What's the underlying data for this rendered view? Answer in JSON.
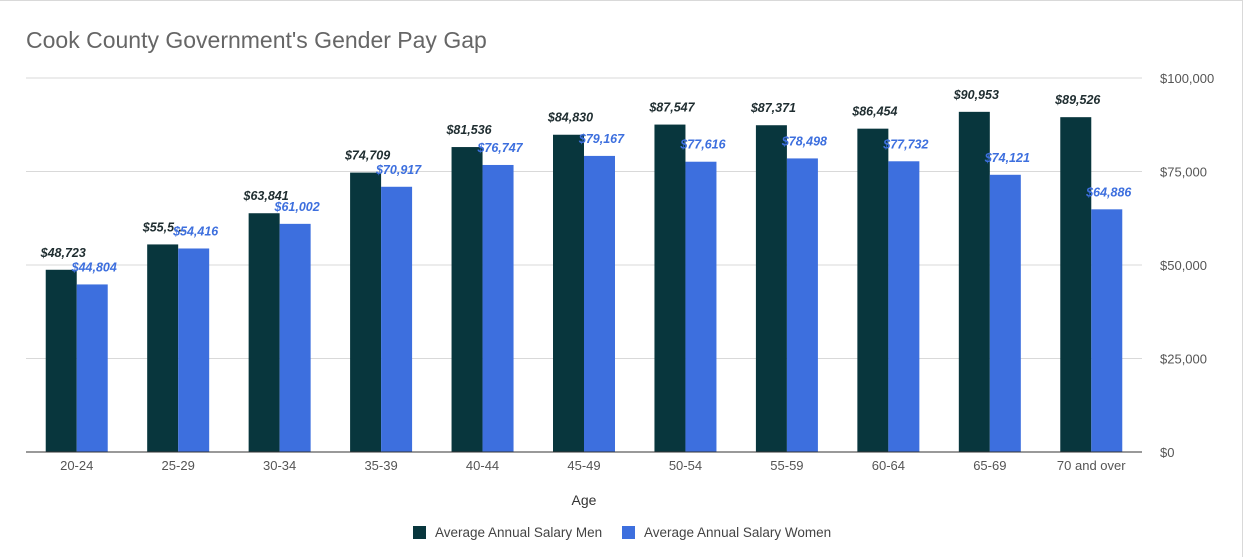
{
  "chart_data": {
    "type": "bar",
    "title": "Cook County Government's Gender Pay Gap",
    "xlabel": "Age",
    "ylabel": "",
    "categories": [
      "20-24",
      "25-29",
      "30-34",
      "35-39",
      "40-44",
      "45-49",
      "50-54",
      "55-59",
      "60-64",
      "65-69",
      "70 and over"
    ],
    "series": [
      {
        "name": "Average Annual Salary Men",
        "color": "#08363d",
        "label_color": "#1f2d30",
        "values": [
          48723,
          55500,
          63841,
          74709,
          81536,
          84830,
          87547,
          87371,
          86454,
          90953,
          89526
        ],
        "labels": [
          "$48,723",
          "$55,5…",
          "$63,841",
          "$74,709",
          "$81,536",
          "$84,830",
          "$87,547",
          "$87,371",
          "$86,454",
          "$90,953",
          "$89,526"
        ]
      },
      {
        "name": "Average Annual Salary Women",
        "color": "#3d6fde",
        "label_color": "#3d6fde",
        "values": [
          44804,
          54416,
          61002,
          70917,
          76747,
          79167,
          77616,
          78498,
          77732,
          74121,
          64886
        ],
        "labels": [
          "$44,804",
          "$54,416",
          "$61,002",
          "$70,917",
          "$76,747",
          "$79,167",
          "$77,616",
          "$78,498",
          "$77,732",
          "$74,121",
          "$64,886"
        ]
      }
    ],
    "ylim": [
      0,
      100000
    ],
    "yticks": [
      0,
      25000,
      50000,
      75000,
      100000
    ],
    "ytick_labels": [
      "$0",
      "$25,000",
      "$50,000",
      "$75,000",
      "$100,000"
    ],
    "y_axis_side": "right",
    "grid": true,
    "legend_position": "bottom"
  }
}
